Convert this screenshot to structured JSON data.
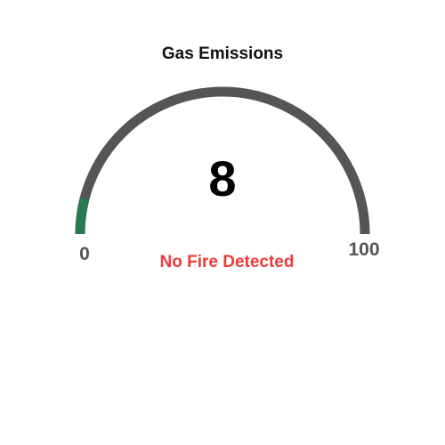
{
  "gauge": {
    "title": "Gas Emissions",
    "value": 8,
    "value_label": "8",
    "min": 0,
    "max": 100,
    "min_label": "0",
    "max_label": "100",
    "status": "No Fire Detected",
    "colors": {
      "track": "#555555",
      "fill": "#2a7a4f",
      "status": "#f03a3a",
      "value_text": "#000000"
    }
  }
}
